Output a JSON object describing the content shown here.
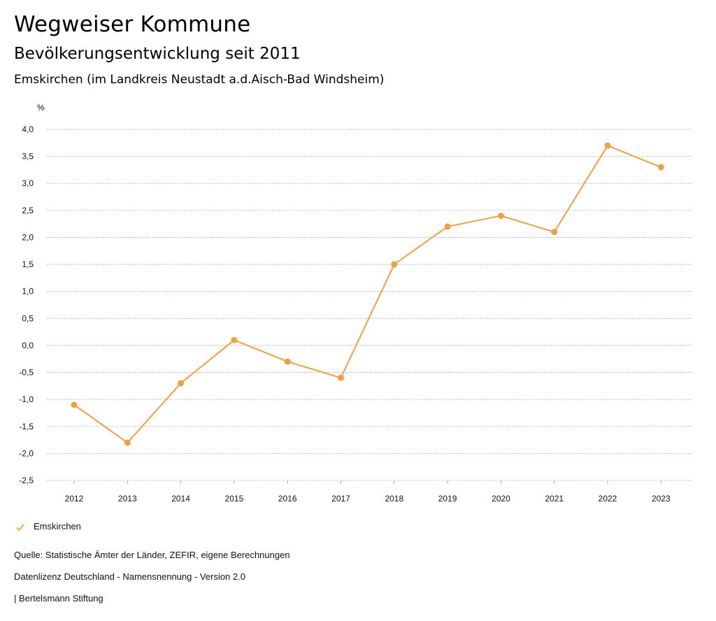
{
  "header": {
    "title": "Wegweiser Kommune",
    "subtitle": "Bevölkerungsentwicklung seit 2011",
    "region": "Emskirchen (im Landkreis Neustadt a.d.Aisch-Bad Windsheim)"
  },
  "chart_data": {
    "type": "line",
    "unit_label": "%",
    "categories": [
      "2012",
      "2013",
      "2014",
      "2015",
      "2016",
      "2017",
      "2018",
      "2019",
      "2020",
      "2021",
      "2022",
      "2023"
    ],
    "series": [
      {
        "name": "Emskirchen",
        "values": [
          -1.1,
          -1.8,
          -0.7,
          0.1,
          -0.3,
          -0.6,
          1.5,
          2.2,
          2.4,
          2.1,
          3.7,
          3.3
        ]
      }
    ],
    "ylim": [
      -2.5,
      4.0
    ],
    "yticks": [
      "4,0",
      "3,5",
      "3,0",
      "2,5",
      "2,0",
      "1,5",
      "1,0",
      "0,5",
      "0,0",
      "-0,5",
      "-1,0",
      "-1,5",
      "-2,0",
      "-2,5"
    ],
    "grid": true,
    "legend_position": "bottom-left",
    "line_color": "#f0a03c"
  },
  "legend": {
    "label": "Emskirchen"
  },
  "footer": {
    "source": "Quelle: Statistische Ämter der Länder, ZEFIR, eigene Berechnungen",
    "license": "Datenlizenz Deutschland - Namensnennung - Version 2.0",
    "publisher": "| Bertelsmann Stiftung"
  }
}
